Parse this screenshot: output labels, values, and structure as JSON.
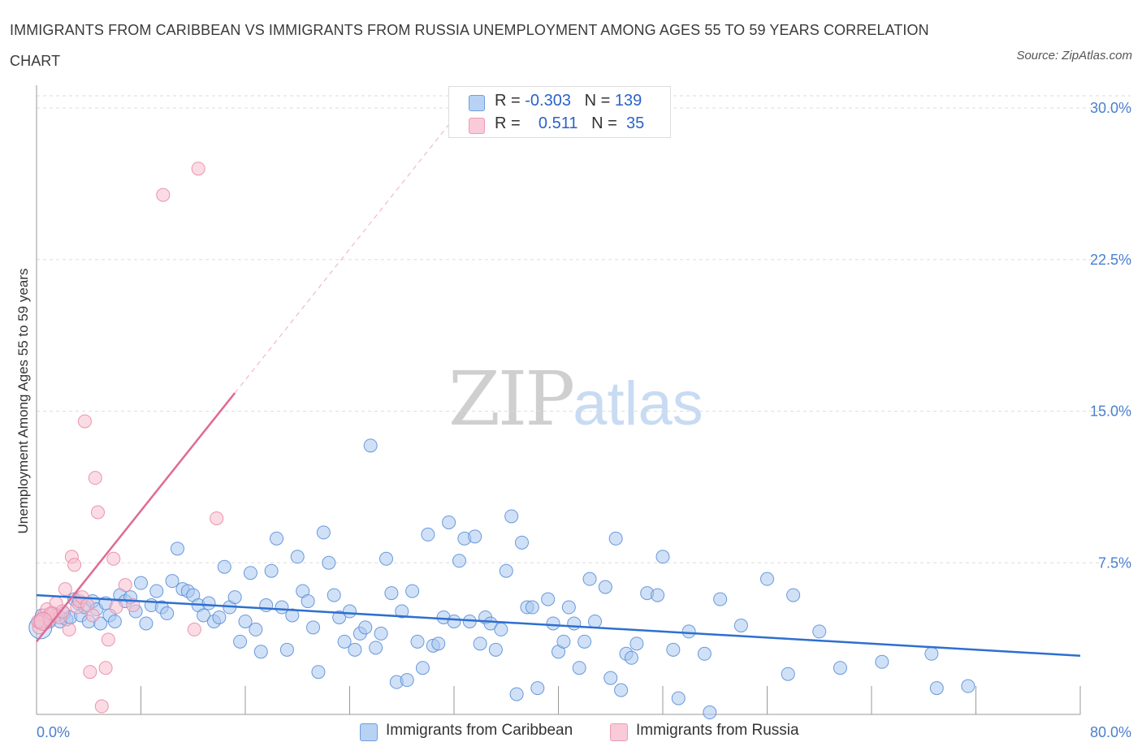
{
  "title": "IMMIGRANTS FROM CARIBBEAN VS IMMIGRANTS FROM RUSSIA UNEMPLOYMENT AMONG AGES 55 TO 59 YEARS CORRELATION CHART",
  "source": "Source: ZipAtlas.com",
  "watermark": {
    "zip": "ZIP",
    "atlas": "atlas"
  },
  "colors": {
    "caribbean_fill": "#a9c8f0",
    "caribbean_stroke": "#5b8fd8",
    "caribbean_line": "#2e6fcf",
    "russia_fill": "#f7c0d0",
    "russia_stroke": "#e88aa6",
    "russia_line": "#e06a92",
    "axis_text": "#4a7fd0",
    "grid": "#dddddd"
  },
  "stats": {
    "caribbean": {
      "r_label": "R =",
      "r_value": "-0.303",
      "n_label": "N =",
      "n_value": "139"
    },
    "russia": {
      "r_label": "R =",
      "r_value": "0.511",
      "n_label": "N =",
      "n_value": "35"
    }
  },
  "legend": {
    "caribbean": "Immigrants from Caribbean",
    "russia": "Immigrants from Russia"
  },
  "chart_data": {
    "type": "scatter",
    "ylabel": "Unemployment Among Ages 55 to 59 years",
    "xlabel": "",
    "xlim": [
      0,
      80
    ],
    "ylim": [
      0,
      30
    ],
    "x_tick_labels": {
      "min": "0.0%",
      "max": "80.0%"
    },
    "y_ticks": [
      {
        "value": 7.5,
        "label": "7.5%"
      },
      {
        "value": 15,
        "label": "15.0%"
      },
      {
        "value": 22.5,
        "label": "22.5%"
      },
      {
        "value": 30,
        "label": "30.0%"
      }
    ],
    "grid": "horizontal dashed",
    "legend_position": "bottom-center",
    "series": [
      {
        "name": "Immigrants from Caribbean",
        "key": "caribbean",
        "trend": {
          "x": [
            0,
            80
          ],
          "y": [
            5.9,
            2.9
          ]
        },
        "points": [
          [
            0.2,
            4.6
          ],
          [
            0.4,
            4.9
          ],
          [
            0.6,
            4.5
          ],
          [
            0.8,
            4.8
          ],
          [
            1.0,
            4.6
          ],
          [
            1.2,
            5.0
          ],
          [
            1.5,
            4.9
          ],
          [
            1.8,
            4.6
          ],
          [
            2.1,
            5.0
          ],
          [
            2.3,
            4.7
          ],
          [
            2.6,
            4.8
          ],
          [
            2.9,
            5.7
          ],
          [
            3.2,
            5.5
          ],
          [
            3.4,
            4.9
          ],
          [
            3.7,
            5.3
          ],
          [
            4.0,
            4.6
          ],
          [
            4.3,
            5.6
          ],
          [
            4.6,
            5.2
          ],
          [
            4.9,
            4.5
          ],
          [
            5.3,
            5.5
          ],
          [
            5.6,
            4.9
          ],
          [
            6.0,
            4.6
          ],
          [
            6.4,
            5.9
          ],
          [
            6.8,
            5.6
          ],
          [
            7.2,
            5.8
          ],
          [
            7.6,
            5.1
          ],
          [
            8.0,
            6.5
          ],
          [
            8.4,
            4.5
          ],
          [
            8.8,
            5.4
          ],
          [
            9.2,
            6.1
          ],
          [
            9.6,
            5.3
          ],
          [
            10.0,
            5.0
          ],
          [
            10.4,
            6.6
          ],
          [
            10.8,
            8.2
          ],
          [
            11.2,
            6.2
          ],
          [
            11.6,
            6.1
          ],
          [
            12.0,
            5.9
          ],
          [
            12.4,
            5.4
          ],
          [
            12.8,
            4.9
          ],
          [
            13.2,
            5.5
          ],
          [
            13.6,
            4.6
          ],
          [
            14.0,
            4.8
          ],
          [
            14.4,
            7.3
          ],
          [
            14.8,
            5.3
          ],
          [
            15.2,
            5.8
          ],
          [
            15.6,
            3.6
          ],
          [
            16.0,
            4.6
          ],
          [
            16.4,
            7.0
          ],
          [
            16.8,
            4.2
          ],
          [
            17.2,
            3.1
          ],
          [
            17.6,
            5.4
          ],
          [
            18.0,
            7.1
          ],
          [
            18.4,
            8.7
          ],
          [
            18.8,
            5.3
          ],
          [
            19.2,
            3.2
          ],
          [
            19.6,
            4.9
          ],
          [
            20.0,
            7.8
          ],
          [
            20.4,
            6.1
          ],
          [
            20.8,
            5.6
          ],
          [
            21.2,
            4.3
          ],
          [
            21.6,
            2.1
          ],
          [
            22.0,
            9.0
          ],
          [
            22.4,
            7.5
          ],
          [
            22.8,
            5.9
          ],
          [
            23.2,
            4.8
          ],
          [
            23.6,
            3.6
          ],
          [
            24.0,
            5.1
          ],
          [
            24.4,
            3.2
          ],
          [
            24.8,
            4.0
          ],
          [
            25.2,
            4.3
          ],
          [
            25.6,
            13.3
          ],
          [
            26.0,
            3.3
          ],
          [
            26.4,
            4.0
          ],
          [
            26.8,
            7.7
          ],
          [
            27.2,
            6.0
          ],
          [
            27.6,
            1.6
          ],
          [
            28.0,
            5.1
          ],
          [
            28.4,
            1.7
          ],
          [
            28.8,
            6.1
          ],
          [
            29.2,
            3.6
          ],
          [
            29.6,
            2.3
          ],
          [
            30.0,
            8.9
          ],
          [
            30.4,
            3.4
          ],
          [
            30.8,
            3.5
          ],
          [
            31.2,
            4.8
          ],
          [
            31.6,
            9.5
          ],
          [
            32.0,
            4.6
          ],
          [
            32.4,
            7.6
          ],
          [
            32.8,
            8.7
          ],
          [
            33.2,
            4.6
          ],
          [
            33.6,
            8.8
          ],
          [
            34.0,
            3.5
          ],
          [
            34.4,
            4.8
          ],
          [
            34.8,
            4.5
          ],
          [
            35.2,
            3.2
          ],
          [
            35.6,
            4.2
          ],
          [
            36.0,
            7.1
          ],
          [
            36.4,
            9.8
          ],
          [
            36.8,
            1.0
          ],
          [
            37.2,
            8.5
          ],
          [
            37.6,
            5.3
          ],
          [
            38.0,
            5.3
          ],
          [
            38.4,
            1.3
          ],
          [
            39.2,
            5.7
          ],
          [
            39.6,
            4.5
          ],
          [
            40.0,
            3.1
          ],
          [
            40.4,
            3.6
          ],
          [
            40.8,
            5.3
          ],
          [
            41.2,
            4.5
          ],
          [
            41.6,
            2.3
          ],
          [
            42.0,
            3.6
          ],
          [
            42.4,
            6.7
          ],
          [
            42.8,
            4.6
          ],
          [
            43.6,
            6.3
          ],
          [
            44.0,
            1.8
          ],
          [
            44.4,
            8.7
          ],
          [
            44.8,
            1.2
          ],
          [
            45.2,
            3.0
          ],
          [
            45.6,
            2.8
          ],
          [
            46.0,
            3.5
          ],
          [
            46.8,
            6.0
          ],
          [
            47.6,
            5.9
          ],
          [
            48.0,
            7.8
          ],
          [
            48.8,
            3.2
          ],
          [
            49.2,
            0.8
          ],
          [
            50.0,
            4.1
          ],
          [
            51.2,
            3.0
          ],
          [
            51.6,
            0.1
          ],
          [
            52.4,
            5.7
          ],
          [
            54.0,
            4.4
          ],
          [
            56.0,
            6.7
          ],
          [
            57.6,
            2.0
          ],
          [
            58.0,
            5.9
          ],
          [
            60.0,
            4.1
          ],
          [
            61.6,
            2.3
          ],
          [
            64.8,
            2.6
          ],
          [
            68.6,
            3.0
          ],
          [
            69.0,
            1.3
          ],
          [
            71.4,
            1.4
          ]
        ]
      },
      {
        "name": "Immigrants from Russia",
        "key": "russia",
        "trend": {
          "x": [
            0,
            15.2
          ],
          "y": [
            3.6,
            15.9
          ]
        },
        "trend_extension": {
          "x": [
            15.2,
            32
          ],
          "y": [
            15.9,
            29.5
          ]
        },
        "points": [
          [
            0.2,
            4.3
          ],
          [
            0.4,
            4.6
          ],
          [
            0.6,
            4.9
          ],
          [
            0.8,
            5.2
          ],
          [
            1.0,
            4.7
          ],
          [
            1.3,
            5.0
          ],
          [
            1.5,
            5.5
          ],
          [
            1.8,
            4.8
          ],
          [
            2.0,
            5.1
          ],
          [
            2.2,
            6.2
          ],
          [
            2.5,
            4.2
          ],
          [
            2.7,
            7.8
          ],
          [
            2.9,
            7.4
          ],
          [
            3.1,
            5.3
          ],
          [
            3.3,
            5.6
          ],
          [
            3.5,
            5.8
          ],
          [
            3.7,
            14.5
          ],
          [
            3.9,
            5.4
          ],
          [
            4.1,
            2.1
          ],
          [
            4.3,
            4.9
          ],
          [
            4.5,
            11.7
          ],
          [
            4.7,
            10.0
          ],
          [
            5.0,
            0.4
          ],
          [
            5.3,
            2.3
          ],
          [
            5.5,
            3.7
          ],
          [
            5.9,
            7.7
          ],
          [
            6.1,
            5.3
          ],
          [
            6.8,
            6.4
          ],
          [
            7.4,
            5.4
          ],
          [
            9.7,
            25.7
          ],
          [
            12.1,
            4.2
          ],
          [
            12.4,
            27.0
          ],
          [
            13.8,
            9.7
          ],
          [
            0.1,
            4.6
          ],
          [
            1.1,
            5.0
          ]
        ]
      }
    ]
  }
}
